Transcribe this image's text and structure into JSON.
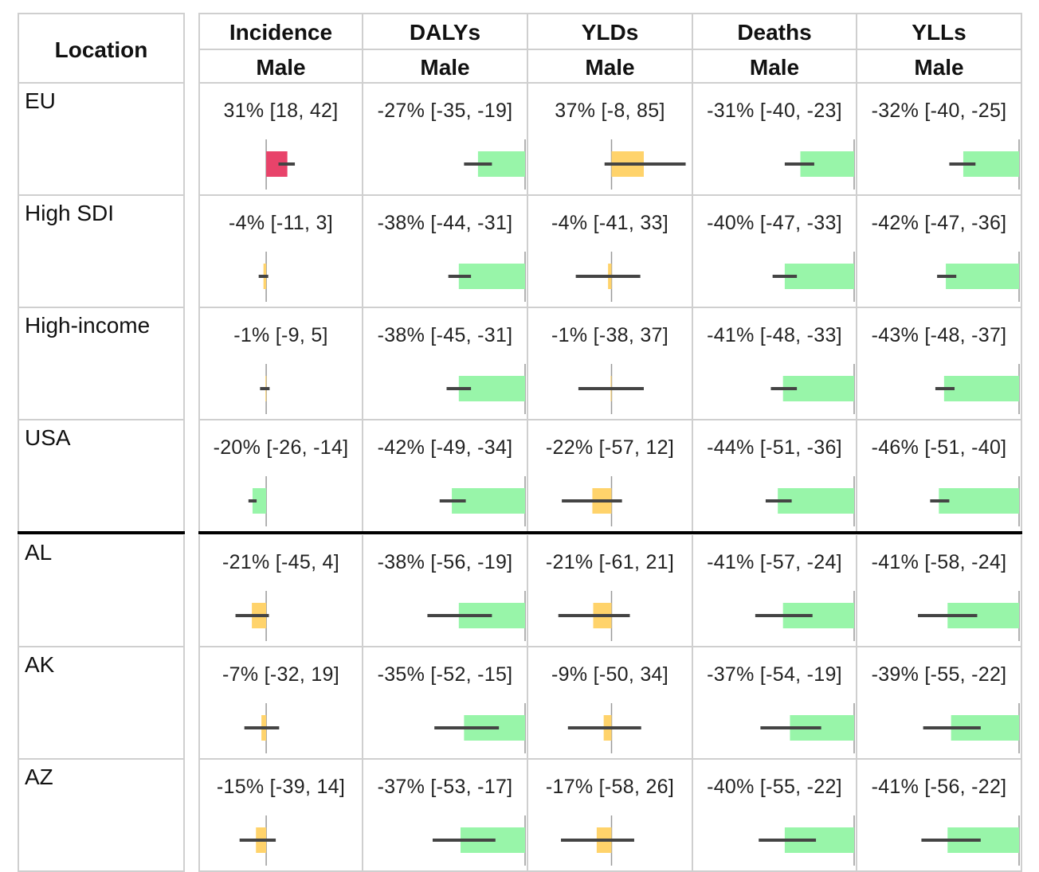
{
  "location_header": "Location",
  "chart_data": {
    "type": "table",
    "columns": [
      {
        "measure": "Incidence",
        "sex": "Male",
        "xlim": [
          -90,
          140
        ]
      },
      {
        "measure": "DALYs",
        "sex": "Male",
        "xlim": [
          -90,
          0
        ]
      },
      {
        "measure": "YLDs",
        "sex": "Male",
        "xlim": [
          -90,
          90
        ]
      },
      {
        "measure": "Deaths",
        "sex": "Male",
        "xlim": [
          -90,
          0
        ]
      },
      {
        "measure": "YLLs",
        "sex": "Male",
        "xlim": [
          -90,
          0
        ]
      }
    ],
    "rows": [
      {
        "location": "EU",
        "cells": [
          {
            "label": "31% [18, 42]",
            "value": 31,
            "lower": 18,
            "upper": 42,
            "color": "#e8436a"
          },
          {
            "label": "-27% [-35, -19]",
            "value": -27,
            "lower": -35,
            "upper": -19,
            "color": "#98f5a9"
          },
          {
            "label": "37% [-8, 85]",
            "value": 37,
            "lower": -8,
            "upper": 85,
            "color": "#ffd36b"
          },
          {
            "label": "-31% [-40, -23]",
            "value": -31,
            "lower": -40,
            "upper": -23,
            "color": "#98f5a9"
          },
          {
            "label": "-32% [-40, -25]",
            "value": -32,
            "lower": -40,
            "upper": -25,
            "color": "#98f5a9"
          }
        ]
      },
      {
        "location": "High SDI",
        "cells": [
          {
            "label": "-4% [-11, 3]",
            "value": -4,
            "lower": -11,
            "upper": 3,
            "color": "#ffd36b"
          },
          {
            "label": "-38% [-44, -31]",
            "value": -38,
            "lower": -44,
            "upper": -31,
            "color": "#98f5a9"
          },
          {
            "label": "-4% [-41, 33]",
            "value": -4,
            "lower": -41,
            "upper": 33,
            "color": "#ffd36b"
          },
          {
            "label": "-40% [-47, -33]",
            "value": -40,
            "lower": -47,
            "upper": -33,
            "color": "#98f5a9"
          },
          {
            "label": "-42% [-47, -36]",
            "value": -42,
            "lower": -47,
            "upper": -36,
            "color": "#98f5a9"
          }
        ]
      },
      {
        "location": "High-income",
        "cells": [
          {
            "label": "-1% [-9, 5]",
            "value": -1,
            "lower": -9,
            "upper": 5,
            "color": "#ffd36b"
          },
          {
            "label": "-38% [-45, -31]",
            "value": -38,
            "lower": -45,
            "upper": -31,
            "color": "#98f5a9"
          },
          {
            "label": "-1% [-38, 37]",
            "value": -1,
            "lower": -38,
            "upper": 37,
            "color": "#ffd36b"
          },
          {
            "label": "-41% [-48, -33]",
            "value": -41,
            "lower": -48,
            "upper": -33,
            "color": "#98f5a9"
          },
          {
            "label": "-43% [-48, -37]",
            "value": -43,
            "lower": -48,
            "upper": -37,
            "color": "#98f5a9"
          }
        ]
      },
      {
        "location": "USA",
        "cells": [
          {
            "label": "-20% [-26, -14]",
            "value": -20,
            "lower": -26,
            "upper": -14,
            "color": "#98f5a9"
          },
          {
            "label": "-42% [-49, -34]",
            "value": -42,
            "lower": -49,
            "upper": -34,
            "color": "#98f5a9"
          },
          {
            "label": "-22% [-57, 12]",
            "value": -22,
            "lower": -57,
            "upper": 12,
            "color": "#ffd36b"
          },
          {
            "label": "-44% [-51, -36]",
            "value": -44,
            "lower": -51,
            "upper": -36,
            "color": "#98f5a9"
          },
          {
            "label": "-46% [-51, -40]",
            "value": -46,
            "lower": -51,
            "upper": -40,
            "color": "#98f5a9"
          }
        ]
      },
      {
        "location": "AL",
        "cells": [
          {
            "label": "-21% [-45, 4]",
            "value": -21,
            "lower": -45,
            "upper": 4,
            "color": "#ffd36b"
          },
          {
            "label": "-38% [-56, -19]",
            "value": -38,
            "lower": -56,
            "upper": -19,
            "color": "#98f5a9"
          },
          {
            "label": "-21% [-61, 21]",
            "value": -21,
            "lower": -61,
            "upper": 21,
            "color": "#ffd36b"
          },
          {
            "label": "-41% [-57, -24]",
            "value": -41,
            "lower": -57,
            "upper": -24,
            "color": "#98f5a9"
          },
          {
            "label": "-41% [-58, -24]",
            "value": -41,
            "lower": -58,
            "upper": -24,
            "color": "#98f5a9"
          }
        ]
      },
      {
        "location": "AK",
        "cells": [
          {
            "label": "-7% [-32, 19]",
            "value": -7,
            "lower": -32,
            "upper": 19,
            "color": "#ffd36b"
          },
          {
            "label": "-35% [-52, -15]",
            "value": -35,
            "lower": -52,
            "upper": -15,
            "color": "#98f5a9"
          },
          {
            "label": "-9% [-50, 34]",
            "value": -9,
            "lower": -50,
            "upper": 34,
            "color": "#ffd36b"
          },
          {
            "label": "-37% [-54, -19]",
            "value": -37,
            "lower": -54,
            "upper": -19,
            "color": "#98f5a9"
          },
          {
            "label": "-39% [-55, -22]",
            "value": -39,
            "lower": -55,
            "upper": -22,
            "color": "#98f5a9"
          }
        ]
      },
      {
        "location": "AZ",
        "cells": [
          {
            "label": "-15% [-39, 14]",
            "value": -15,
            "lower": -39,
            "upper": 14,
            "color": "#ffd36b"
          },
          {
            "label": "-37% [-53, -17]",
            "value": -37,
            "lower": -53,
            "upper": -17,
            "color": "#98f5a9"
          },
          {
            "label": "-17% [-58, 26]",
            "value": -17,
            "lower": -58,
            "upper": 26,
            "color": "#ffd36b"
          },
          {
            "label": "-40% [-55, -22]",
            "value": -40,
            "lower": -55,
            "upper": -22,
            "color": "#98f5a9"
          },
          {
            "label": "-41% [-56, -22]",
            "value": -41,
            "lower": -56,
            "upper": -22,
            "color": "#98f5a9"
          }
        ]
      }
    ],
    "zero_line_color": "#999999",
    "interval_line_color": "#444444"
  }
}
